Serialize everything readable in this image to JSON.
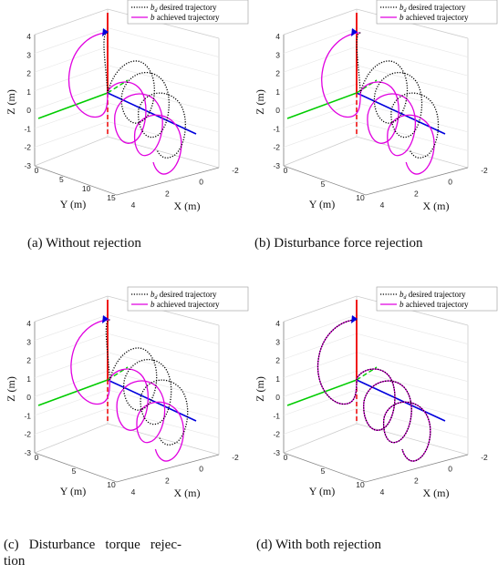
{
  "legend": {
    "desired_label": "desired trajectory",
    "achieved_label": "achieved trajectory"
  },
  "colors": {
    "desired": "#000000",
    "achieved": "#e000e0",
    "x_axis": "#0000dd",
    "y_axis": "#00cc00",
    "z_axis": "#ee0000",
    "box": "#cccccc"
  },
  "chart_data": [
    {
      "type": "line",
      "panel": "a",
      "caption": "(a) Without rejection",
      "xlabel": "X (m)",
      "ylabel": "Y (m)",
      "zlabel": "Z (m)",
      "z_ticks": [
        "4",
        "3",
        "2",
        "1",
        "0",
        "-1",
        "-2",
        "-3"
      ],
      "y_ticks": [
        "0",
        "5",
        "10",
        "15"
      ],
      "x_ticks": [
        "4",
        "2",
        "0",
        "-2"
      ],
      "series": [
        {
          "name": "desired trajectory",
          "style": "dotted",
          "color": "#000000"
        },
        {
          "name": "achieved trajectory",
          "style": "solid",
          "color": "#e000e0"
        }
      ]
    },
    {
      "type": "line",
      "panel": "b",
      "caption": "(b) Disturbance force rejection",
      "xlabel": "X (m)",
      "ylabel": "Y (m)",
      "zlabel": "Z (m)",
      "z_ticks": [
        "4",
        "3",
        "2",
        "1",
        "0",
        "-1",
        "-2",
        "-3"
      ],
      "y_ticks": [
        "0",
        "5",
        "10"
      ],
      "x_ticks": [
        "4",
        "2",
        "0",
        "-2"
      ],
      "series": [
        {
          "name": "desired trajectory",
          "style": "dotted",
          "color": "#000000"
        },
        {
          "name": "achieved trajectory",
          "style": "solid",
          "color": "#e000e0"
        }
      ]
    },
    {
      "type": "line",
      "panel": "c",
      "caption": "(c) Disturbance torque rejec-tion",
      "xlabel": "X (m)",
      "ylabel": "Y (m)",
      "zlabel": "Z (m)",
      "z_ticks": [
        "4",
        "3",
        "2",
        "1",
        "0",
        "-1",
        "-2",
        "-3"
      ],
      "y_ticks": [
        "0",
        "5",
        "10"
      ],
      "x_ticks": [
        "4",
        "2",
        "0",
        "-2"
      ],
      "series": [
        {
          "name": "desired trajectory",
          "style": "dotted",
          "color": "#000000"
        },
        {
          "name": "achieved trajectory",
          "style": "solid",
          "color": "#e000e0"
        }
      ]
    },
    {
      "type": "line",
      "panel": "d",
      "caption": "(d) With both rejection",
      "xlabel": "X (m)",
      "ylabel": "Y (m)",
      "zlabel": "Z (m)",
      "z_ticks": [
        "4",
        "3",
        "2",
        "1",
        "0",
        "-1",
        "-2",
        "-3"
      ],
      "y_ticks": [
        "0",
        "5",
        "10"
      ],
      "x_ticks": [
        "4",
        "2",
        "0",
        "-2"
      ],
      "series": [
        {
          "name": "desired trajectory",
          "style": "dotted",
          "color": "#000000"
        },
        {
          "name": "achieved trajectory",
          "style": "solid",
          "color": "#e000e0"
        }
      ]
    }
  ]
}
